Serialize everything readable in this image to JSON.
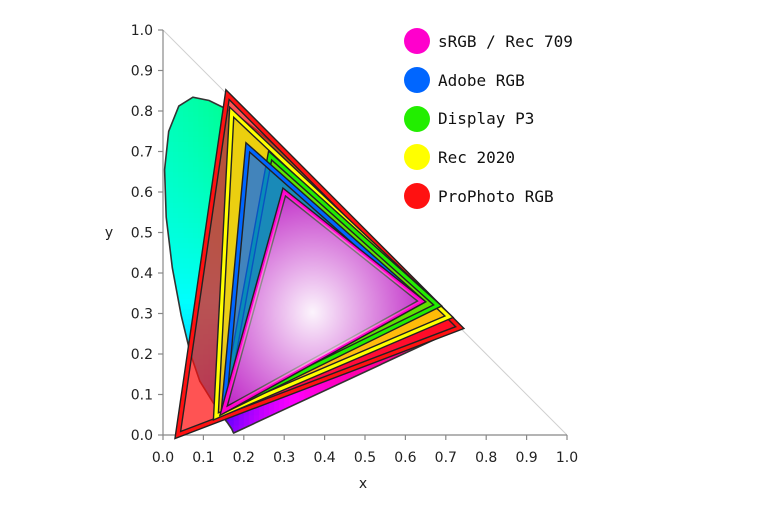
{
  "chart_data": {
    "type": "scatter",
    "title": "",
    "xlabel": "x",
    "ylabel": "y",
    "xlim": [
      0.0,
      1.0
    ],
    "ylim": [
      0.0,
      1.0
    ],
    "x_ticks": [
      "0.0",
      "0.1",
      "0.2",
      "0.3",
      "0.4",
      "0.5",
      "0.6",
      "0.7",
      "0.8",
      "0.9",
      "1.0"
    ],
    "y_ticks": [
      "0.0",
      "0.1",
      "0.2",
      "0.3",
      "0.4",
      "0.5",
      "0.6",
      "0.7",
      "0.8",
      "0.9",
      "1.0"
    ],
    "grid": false,
    "legend_position": "top-right",
    "spectral_locus": [
      [
        0.175,
        0.005
      ],
      [
        0.174,
        0.006
      ],
      [
        0.17,
        0.015
      ],
      [
        0.16,
        0.03
      ],
      [
        0.144,
        0.05
      ],
      [
        0.124,
        0.08
      ],
      [
        0.091,
        0.133
      ],
      [
        0.068,
        0.2
      ],
      [
        0.045,
        0.295
      ],
      [
        0.023,
        0.413
      ],
      [
        0.008,
        0.538
      ],
      [
        0.004,
        0.655
      ],
      [
        0.014,
        0.75
      ],
      [
        0.039,
        0.812
      ],
      [
        0.074,
        0.834
      ],
      [
        0.114,
        0.826
      ],
      [
        0.155,
        0.806
      ],
      [
        0.193,
        0.782
      ],
      [
        0.23,
        0.754
      ],
      [
        0.266,
        0.724
      ],
      [
        0.302,
        0.692
      ],
      [
        0.337,
        0.659
      ],
      [
        0.373,
        0.624
      ],
      [
        0.409,
        0.59
      ],
      [
        0.445,
        0.554
      ],
      [
        0.482,
        0.518
      ],
      [
        0.516,
        0.483
      ],
      [
        0.55,
        0.45
      ],
      [
        0.58,
        0.419
      ],
      [
        0.608,
        0.391
      ],
      [
        0.631,
        0.369
      ],
      [
        0.666,
        0.334
      ],
      [
        0.69,
        0.31
      ],
      [
        0.709,
        0.291
      ],
      [
        0.721,
        0.279
      ],
      [
        0.735,
        0.265
      ]
    ],
    "series": [
      {
        "name": "sRGB / Rec 709",
        "color": "#ff00cc",
        "points": [
          [
            0.64,
            0.33
          ],
          [
            0.3,
            0.6
          ],
          [
            0.15,
            0.06
          ]
        ]
      },
      {
        "name": "Adobe RGB",
        "color": "#0066ff",
        "points": [
          [
            0.64,
            0.33
          ],
          [
            0.21,
            0.71
          ],
          [
            0.15,
            0.06
          ]
        ]
      },
      {
        "name": "Display P3",
        "color": "#22ee00",
        "points": [
          [
            0.68,
            0.32
          ],
          [
            0.265,
            0.69
          ],
          [
            0.15,
            0.06
          ]
        ]
      },
      {
        "name": "Rec 2020",
        "color": "#ffff00",
        "points": [
          [
            0.708,
            0.292
          ],
          [
            0.17,
            0.797
          ],
          [
            0.131,
            0.046
          ]
        ]
      },
      {
        "name": "ProPhoto RGB",
        "color": "#ff1111",
        "points": [
          [
            0.7347,
            0.2653
          ],
          [
            0.1596,
            0.8404
          ],
          [
            0.0366,
            0.0001
          ]
        ]
      }
    ]
  }
}
